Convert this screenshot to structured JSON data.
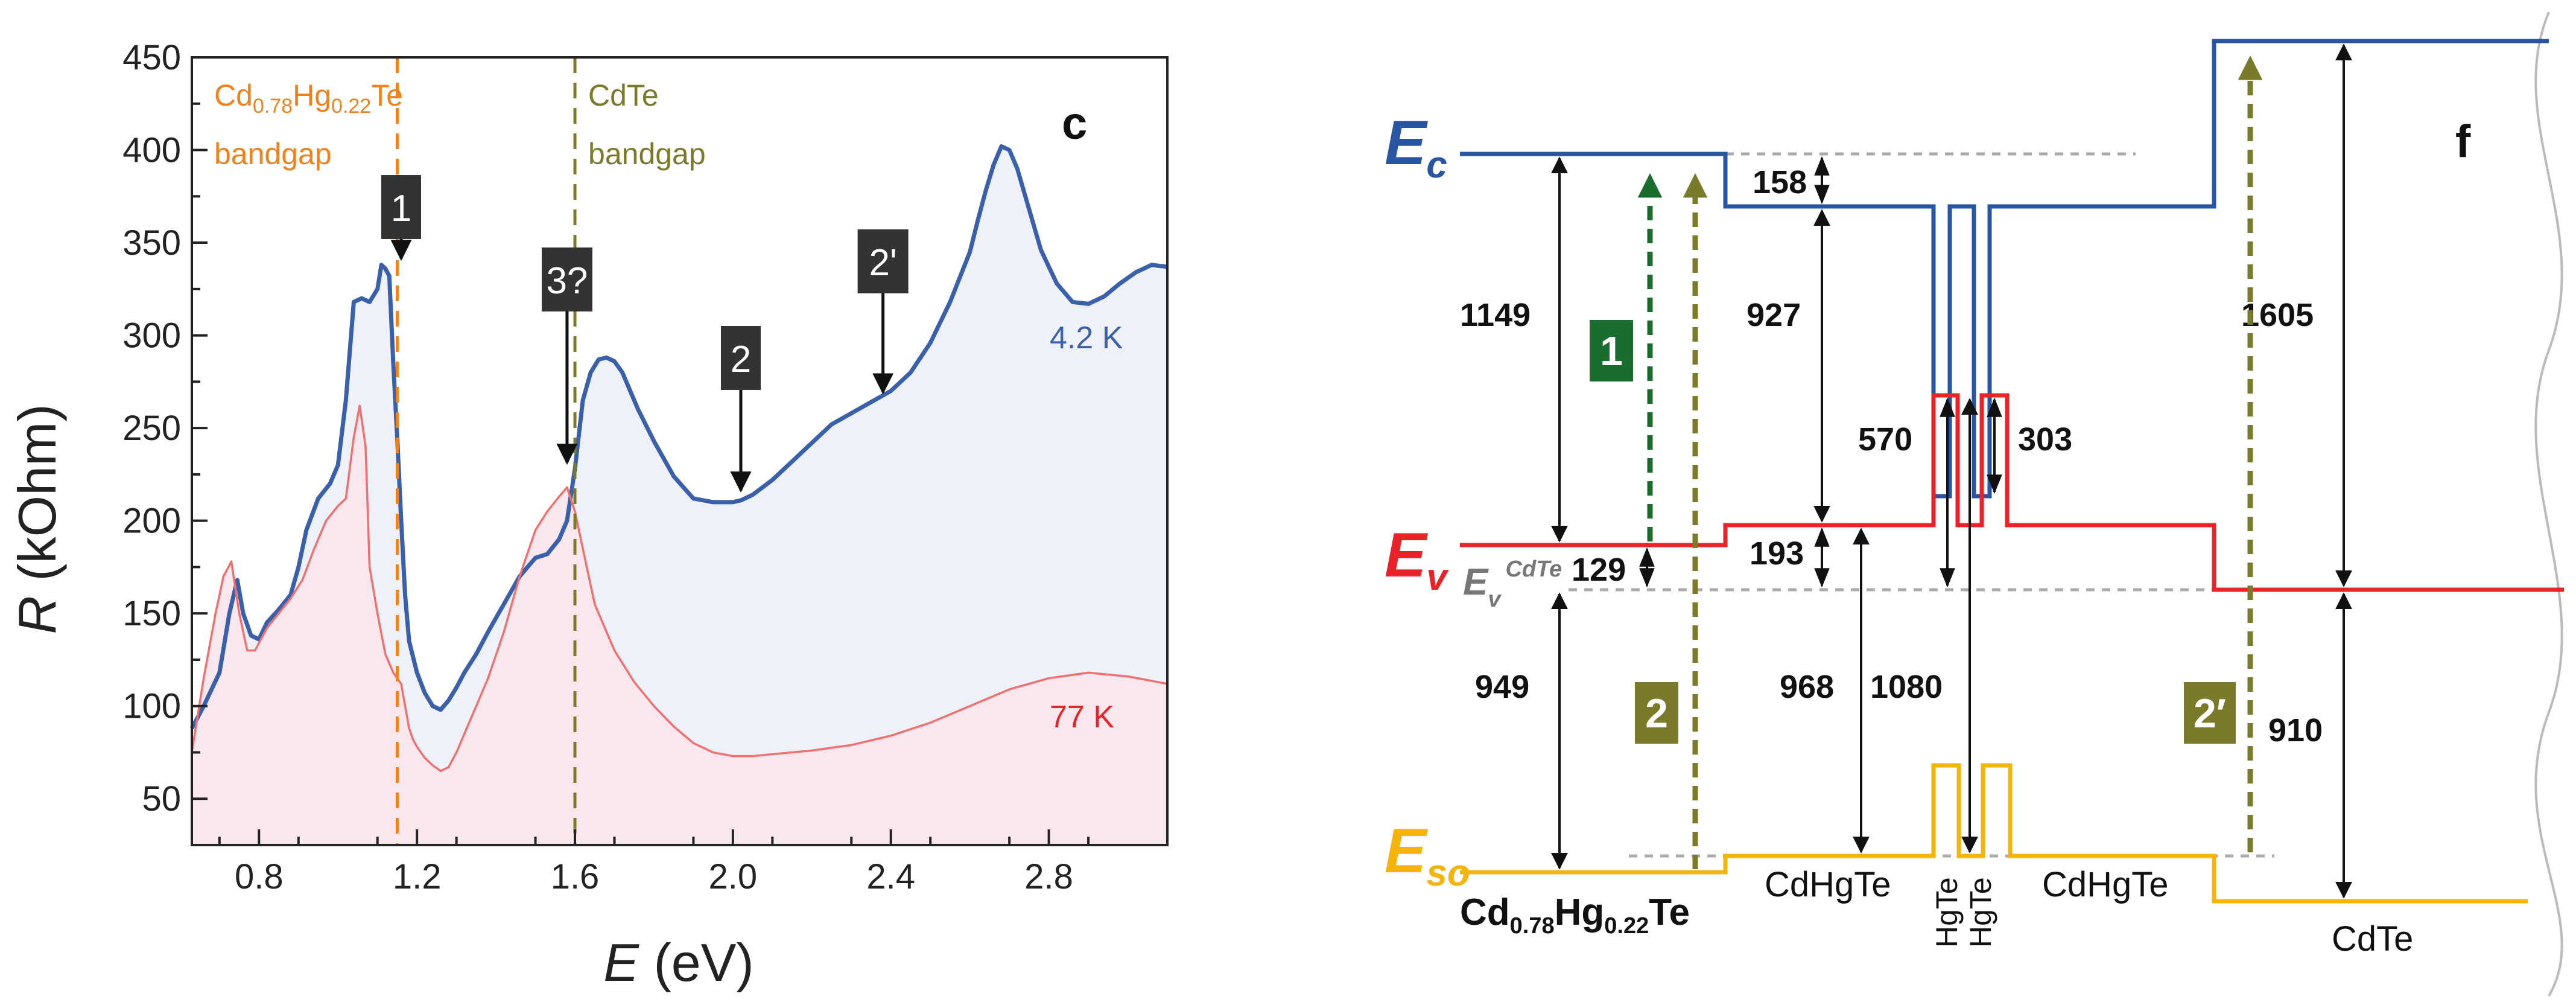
{
  "chart_data": [
    {
      "panel": "c",
      "type": "line",
      "xlabel": "E (eV)",
      "xlabel_var": "E",
      "xlabel_unit": " (eV)",
      "ylabel": "R (kOhm)",
      "ylabel_var": "R",
      "ylabel_unit": " (kOhm)",
      "xlim": [
        0.63,
        3.1
      ],
      "ylim": [
        25,
        450
      ],
      "xticks": [
        0.8,
        1.2,
        1.6,
        2.0,
        2.4,
        2.8
      ],
      "xtick_labels": [
        "0.8",
        "1.2",
        "1.6",
        "2.0",
        "2.4",
        "2.8"
      ],
      "yticks": [
        50,
        100,
        150,
        200,
        250,
        300,
        350,
        400,
        450
      ],
      "ytick_labels": [
        "50",
        "100",
        "150",
        "200",
        "250",
        "300",
        "350",
        "400",
        "450"
      ],
      "series": [
        {
          "name": "4.2 K",
          "color": "#3a5fab",
          "fill": "#eef2f8",
          "x": [
            0.63,
            0.66,
            0.7,
            0.725,
            0.745,
            0.76,
            0.78,
            0.8,
            0.82,
            0.85,
            0.88,
            0.9,
            0.92,
            0.95,
            0.98,
            1.0,
            1.02,
            1.04,
            1.06,
            1.08,
            1.1,
            1.11,
            1.12,
            1.13,
            1.14,
            1.15,
            1.16,
            1.17,
            1.18,
            1.2,
            1.22,
            1.24,
            1.26,
            1.28,
            1.3,
            1.32,
            1.35,
            1.38,
            1.42,
            1.46,
            1.5,
            1.53,
            1.56,
            1.58,
            1.6,
            1.62,
            1.64,
            1.66,
            1.68,
            1.7,
            1.72,
            1.74,
            1.76,
            1.8,
            1.85,
            1.9,
            1.95,
            2.0,
            2.02,
            2.05,
            2.1,
            2.15,
            2.2,
            2.25,
            2.3,
            2.35,
            2.4,
            2.45,
            2.5,
            2.55,
            2.6,
            2.62,
            2.64,
            2.66,
            2.68,
            2.7,
            2.72,
            2.75,
            2.78,
            2.82,
            2.86,
            2.9,
            2.94,
            2.98,
            3.02,
            3.06,
            3.1
          ],
          "y": [
            88,
            100,
            118,
            150,
            168,
            150,
            138,
            136,
            145,
            152,
            160,
            175,
            195,
            212,
            220,
            230,
            265,
            318,
            320,
            318,
            325,
            338,
            336,
            332,
            285,
            245,
            200,
            160,
            135,
            118,
            107,
            100,
            98,
            103,
            110,
            118,
            128,
            140,
            155,
            170,
            180,
            182,
            190,
            200,
            228,
            265,
            280,
            287,
            288,
            286,
            280,
            270,
            260,
            243,
            224,
            212,
            210,
            210,
            211,
            214,
            222,
            232,
            242,
            252,
            258,
            264,
            270,
            280,
            296,
            318,
            345,
            362,
            378,
            392,
            402,
            400,
            390,
            368,
            346,
            328,
            318,
            317,
            321,
            328,
            334,
            338,
            337
          ]
        },
        {
          "name": "77 K",
          "color": "#f07070",
          "fill": "#f8e8ee",
          "x": [
            0.63,
            0.66,
            0.69,
            0.71,
            0.73,
            0.75,
            0.77,
            0.79,
            0.82,
            0.85,
            0.88,
            0.91,
            0.94,
            0.97,
            1.0,
            1.02,
            1.04,
            1.055,
            1.07,
            1.08,
            1.1,
            1.12,
            1.14,
            1.15,
            1.16,
            1.17,
            1.18,
            1.19,
            1.2,
            1.22,
            1.24,
            1.26,
            1.28,
            1.3,
            1.32,
            1.35,
            1.38,
            1.42,
            1.46,
            1.5,
            1.53,
            1.56,
            1.58,
            1.6,
            1.62,
            1.65,
            1.7,
            1.75,
            1.8,
            1.85,
            1.9,
            1.95,
            2.0,
            2.05,
            2.1,
            2.2,
            2.3,
            2.4,
            2.5,
            2.6,
            2.7,
            2.8,
            2.9,
            3.0,
            3.1
          ],
          "y": [
            75,
            115,
            150,
            170,
            178,
            150,
            130,
            130,
            142,
            150,
            158,
            168,
            185,
            200,
            208,
            212,
            245,
            262,
            240,
            175,
            150,
            128,
            118,
            115,
            112,
            100,
            88,
            82,
            78,
            72,
            68,
            65,
            67,
            75,
            85,
            100,
            115,
            140,
            170,
            195,
            205,
            213,
            218,
            205,
            185,
            155,
            130,
            113,
            100,
            89,
            80,
            75,
            73,
            73,
            74,
            76,
            79,
            84,
            91,
            100,
            109,
            115,
            118,
            116,
            112
          ]
        }
      ],
      "series_labels": [
        "4.2 K",
        "77 K"
      ],
      "vlines": [
        {
          "x": 1.15,
          "label_parts": [
            {
              "t": "Cd",
              "sub": false
            },
            {
              "t": "0.78",
              "sub": true
            },
            {
              "t": "Hg",
              "sub": false
            },
            {
              "t": "0.22",
              "sub": true
            },
            {
              "t": "Te",
              "sub": false
            }
          ],
          "label2": "bandgap",
          "color": "#f0821e"
        },
        {
          "x": 1.6,
          "label": "CdTe",
          "label2": "bandgap",
          "color": "#7a7a2a"
        }
      ],
      "markers": [
        {
          "label": "1",
          "x": 1.16,
          "y_text": 340
        },
        {
          "label": "3?",
          "x": 1.58,
          "y_text": 230
        },
        {
          "label": "2",
          "x": 2.02,
          "y_text": 215
        },
        {
          "label": "2'",
          "x": 2.38,
          "y_text": 268
        }
      ],
      "panel_letter": "c",
      "grid": false
    }
  ],
  "diagram": {
    "panel_letter": "f",
    "level_labels": {
      "ec": {
        "main": "E",
        "sub": "c",
        "color": "#2955a5"
      },
      "ev": {
        "main": "E",
        "sub": "v",
        "color": "#e8232a"
      },
      "ev_cdte": {
        "main": "E",
        "sub": "v",
        "sup": "CdTe",
        "color": "#777777"
      },
      "eso": {
        "main": "E",
        "sub": "so",
        "color": "#f5b40a"
      }
    },
    "values": {
      "v1149": "1149",
      "v129": "129",
      "v949": "949",
      "v158": "158",
      "v927": "927",
      "v193": "193",
      "v968": "968",
      "v1080": "1080",
      "v570": "570",
      "v303": "303",
      "v1605": "1605",
      "v910": "910"
    },
    "transition_labels": {
      "t1": "1",
      "t2": "2",
      "t2p": "2′"
    },
    "materials": {
      "cdhgte_main_parts": [
        {
          "t": "Cd",
          "sub": false
        },
        {
          "t": "0.78",
          "sub": true
        },
        {
          "t": "Hg",
          "sub": false
        },
        {
          "t": "0.22",
          "sub": true
        },
        {
          "t": "Te",
          "sub": false
        }
      ],
      "cdhgte_left": "CdHgTe",
      "hgte_1": "HgTe",
      "hgte_2": "HgTe",
      "cdhgte_right": "CdHgTe",
      "cdte": "CdTe"
    },
    "colors": {
      "ec": "#2955a5",
      "ev": "#e8232a",
      "eso": "#f5b40a",
      "green": "#1a6d2c",
      "olive": "#7a7a2a",
      "grey": "#aaaaaa"
    }
  }
}
